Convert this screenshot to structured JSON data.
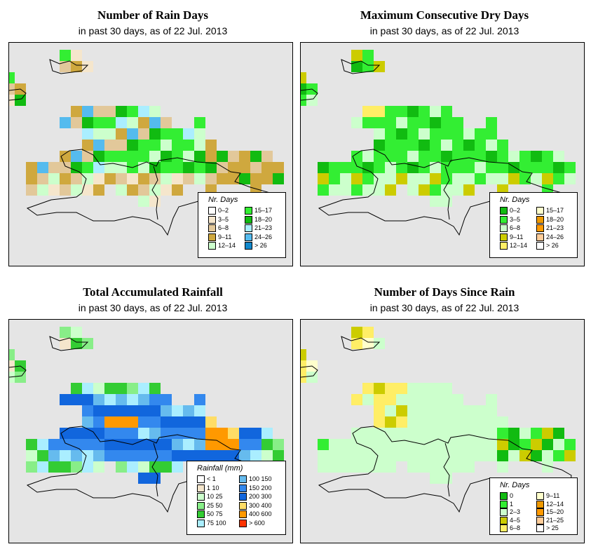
{
  "panels": [
    {
      "id": "rain-days",
      "title": "Number of Rain Days",
      "subtitle": "in past 30 days, as of  22 Jul. 2013",
      "legend": {
        "title": "Nr. Days",
        "items": [
          {
            "label": "0–2",
            "color": "#ffffff"
          },
          {
            "label": "3–5",
            "color": "#f5e6cc"
          },
          {
            "label": "6–8",
            "color": "#e2c89a"
          },
          {
            "label": "9–11",
            "color": "#cfa83e"
          },
          {
            "label": "12–14",
            "color": "#ccffcc"
          },
          {
            "label": "15–17",
            "color": "#33ee33"
          },
          {
            "label": "18–20",
            "color": "#11bb11"
          },
          {
            "label": "21–23",
            "color": "#aaeeff"
          },
          {
            "label": "24–26",
            "color": "#55bbee"
          },
          {
            "label": "> 26",
            "color": "#1188cc"
          }
        ]
      }
    },
    {
      "id": "dry-days",
      "title": "Maximum Consecutive Dry Days",
      "subtitle": "in past 30 days, as of  22 Jul. 2013",
      "legend": {
        "title": "Nr. Days",
        "items": [
          {
            "label": "0–2",
            "color": "#11bb11"
          },
          {
            "label": "3–5",
            "color": "#33ee33"
          },
          {
            "label": "6–8",
            "color": "#ccffcc"
          },
          {
            "label": "9–11",
            "color": "#cccc00"
          },
          {
            "label": "12–14",
            "color": "#ffee66"
          },
          {
            "label": "15–17",
            "color": "#ffffcc"
          },
          {
            "label": "18–20",
            "color": "#ee9900"
          },
          {
            "label": "21–23",
            "color": "#ff9900"
          },
          {
            "label": "24–26",
            "color": "#ffcc99"
          },
          {
            "label": "> 26",
            "color": "#ffffff"
          }
        ]
      }
    },
    {
      "id": "rainfall",
      "title": "Total Accumulated Rainfall",
      "subtitle": "in past 30 days, as of  22 Jul. 2013",
      "legend": {
        "title": "Rainfall (mm)",
        "items": [
          {
            "label": "< 1",
            "color": "#ffffff"
          },
          {
            "label": "1    10",
            "color": "#f5e6cc"
          },
          {
            "label": "10    25",
            "color": "#ccffcc"
          },
          {
            "label": "25    50",
            "color": "#88ee88"
          },
          {
            "label": "50    75",
            "color": "#33cc33"
          },
          {
            "label": "75   100",
            "color": "#aaeeff"
          },
          {
            "label": "100   150",
            "color": "#66bbee"
          },
          {
            "label": "150   200",
            "color": "#3388ee"
          },
          {
            "label": "200   300",
            "color": "#1166dd"
          },
          {
            "label": "300   400",
            "color": "#ffdd66"
          },
          {
            "label": "400   600",
            "color": "#ff9900"
          },
          {
            "label": "> 600",
            "color": "#ff3300"
          }
        ]
      }
    },
    {
      "id": "days-since-rain",
      "title": "Number of Days Since Rain",
      "subtitle": "in past 30 days, as of  22 Jul. 2013",
      "legend": {
        "title": "Nr. Days",
        "items": [
          {
            "label": "0",
            "color": "#11bb11"
          },
          {
            "label": "1",
            "color": "#33ee33"
          },
          {
            "label": "2–3",
            "color": "#ccffcc"
          },
          {
            "label": "4–5",
            "color": "#cccc00"
          },
          {
            "label": "6–8",
            "color": "#ffee66"
          },
          {
            "label": "9–11",
            "color": "#ffffcc"
          },
          {
            "label": "12–14",
            "color": "#ee9900"
          },
          {
            "label": "15–20",
            "color": "#ff9900"
          },
          {
            "label": "21–25",
            "color": "#ffcc99"
          },
          {
            "label": "> 25",
            "color": "#ffffff"
          }
        ]
      }
    }
  ]
}
